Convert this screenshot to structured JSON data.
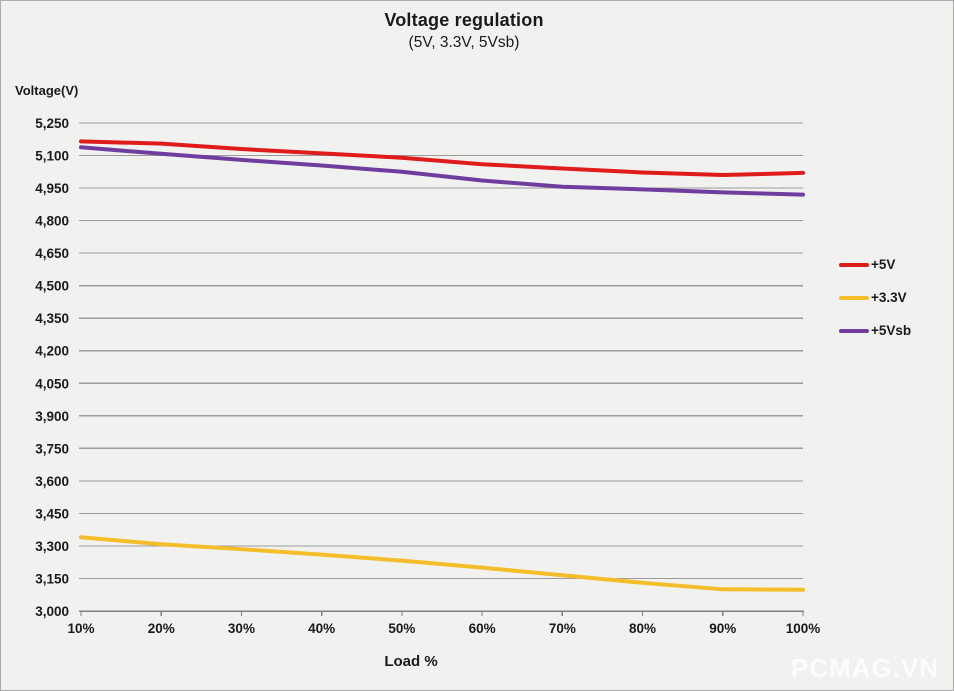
{
  "page": {
    "background": "#F1F1EF",
    "watermark": "PCMAG.VN"
  },
  "chart_data": {
    "type": "line",
    "title": "Voltage regulation",
    "subtitle": "(5V, 3.3V, 5Vsb)",
    "ylabel": "Voltage(V)",
    "xlabel": "Load %",
    "x_categories": [
      "10%",
      "20%",
      "30%",
      "40%",
      "50%",
      "60%",
      "70%",
      "80%",
      "90%",
      "100%"
    ],
    "ylim": [
      3000,
      5250
    ],
    "ytick_step": 150,
    "grid": true,
    "legend_position": "right",
    "series": [
      {
        "name": "+5V",
        "color": "#E01B1B",
        "values": [
          5165,
          5155,
          5130,
          5110,
          5090,
          5060,
          5040,
          5022,
          5010,
          5020
        ]
      },
      {
        "name": "+3.3V",
        "color": "#F3BE2A",
        "values": [
          3340,
          3308,
          3285,
          3260,
          3232,
          3200,
          3165,
          3130,
          3100,
          3098
        ]
      },
      {
        "name": "+5Vsb",
        "color": "#6F3D9E",
        "values": [
          5138,
          5108,
          5080,
          5054,
          5025,
          4985,
          4956,
          4944,
          4930,
          4920
        ]
      }
    ],
    "colors": {
      "gridline": "#9B9B9B",
      "axis": "#7F7F7F",
      "text": "#1A1A1A"
    }
  }
}
